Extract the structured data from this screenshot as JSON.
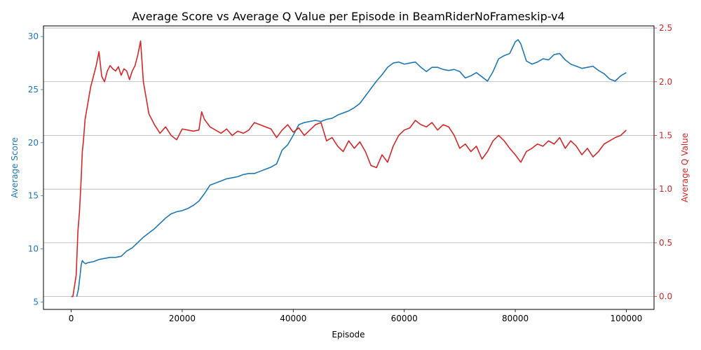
{
  "chart_data": {
    "type": "line",
    "title": "Average Score vs Average Q Value per Episode in BeamRiderNoFrameskip-v4",
    "xlabel": "Episode",
    "xlim": [
      -5000,
      105000
    ],
    "xticks": [
      0,
      20000,
      40000,
      60000,
      80000,
      100000
    ],
    "grid": "horizontal (right axis)",
    "y_left": {
      "label": "Average Score",
      "color": "#1f77b4",
      "lim": [
        4.3,
        31.0
      ],
      "ticks": [
        5,
        10,
        15,
        20,
        25,
        30
      ]
    },
    "y_right": {
      "label": "Average Q Value",
      "color": "#d62728",
      "lim": [
        -0.12,
        2.52
      ],
      "ticks": [
        "0.0",
        "0.5",
        "1.0",
        "1.5",
        "2.0",
        "2.5"
      ]
    },
    "series": [
      {
        "axis": "left",
        "color": "#1f77b4",
        "x": [
          1000,
          1300,
          1600,
          1800,
          2000,
          2300,
          2600,
          3000,
          4000,
          5000,
          6000,
          7000,
          8000,
          9000,
          10000,
          11000,
          12000,
          13000,
          14000,
          15000,
          16000,
          17000,
          18000,
          19000,
          20000,
          21000,
          22000,
          23000,
          24000,
          25000,
          26000,
          27000,
          28000,
          29000,
          30000,
          31000,
          32000,
          33000,
          34000,
          35000,
          36000,
          37000,
          38000,
          39000,
          40000,
          41000,
          42000,
          43000,
          44000,
          45000,
          46000,
          47000,
          48000,
          49000,
          50000,
          51000,
          52000,
          53000,
          54000,
          55000,
          56000,
          57000,
          58000,
          59000,
          60000,
          61000,
          62000,
          63000,
          64000,
          65000,
          66000,
          67000,
          68000,
          69000,
          70000,
          71000,
          72000,
          73000,
          74000,
          75000,
          76000,
          77000,
          78000,
          79000,
          80000,
          80500,
          81000,
          82000,
          83000,
          84000,
          85000,
          86000,
          87000,
          88000,
          89000,
          90000,
          91000,
          92000,
          93000,
          94000,
          95000,
          96000,
          97000,
          98000,
          99000,
          100000
        ],
        "y": [
          5.5,
          6.2,
          7.5,
          8.5,
          8.9,
          8.7,
          8.6,
          8.7,
          8.8,
          9.0,
          9.1,
          9.2,
          9.2,
          9.3,
          9.8,
          10.1,
          10.6,
          11.1,
          11.5,
          11.9,
          12.4,
          12.9,
          13.3,
          13.5,
          13.6,
          13.8,
          14.1,
          14.5,
          15.2,
          16.0,
          16.2,
          16.4,
          16.6,
          16.7,
          16.8,
          17.0,
          17.1,
          17.1,
          17.3,
          17.5,
          17.7,
          18.0,
          19.3,
          19.8,
          20.7,
          21.7,
          21.9,
          22.0,
          22.1,
          22.0,
          22.2,
          22.3,
          22.6,
          22.8,
          23.0,
          23.3,
          23.7,
          24.4,
          25.1,
          25.8,
          26.4,
          27.1,
          27.5,
          27.6,
          27.4,
          27.5,
          27.6,
          27.1,
          26.7,
          27.1,
          27.1,
          26.9,
          26.8,
          26.9,
          26.7,
          26.1,
          26.3,
          26.6,
          26.2,
          25.8,
          26.7,
          27.9,
          28.2,
          28.4,
          29.5,
          29.7,
          29.3,
          27.7,
          27.4,
          27.6,
          27.9,
          27.8,
          28.3,
          28.4,
          27.8,
          27.4,
          27.2,
          27.0,
          27.1,
          27.2,
          26.8,
          26.5,
          26.0,
          25.8,
          26.3,
          26.6
        ]
      },
      {
        "axis": "right",
        "color": "#d62728",
        "x": [
          0,
          300,
          600,
          900,
          1200,
          1500,
          1800,
          2000,
          2200,
          2500,
          3000,
          3500,
          4000,
          4500,
          5000,
          5500,
          6000,
          6500,
          7000,
          7500,
          8000,
          8500,
          9000,
          9500,
          10000,
          10500,
          11000,
          11500,
          12000,
          12500,
          13000,
          13500,
          14000,
          15000,
          16000,
          17000,
          18000,
          19000,
          20000,
          21000,
          22000,
          23000,
          23500,
          24000,
          25000,
          26000,
          27000,
          28000,
          29000,
          30000,
          31000,
          32000,
          33000,
          34000,
          35000,
          36000,
          37000,
          38000,
          39000,
          40000,
          41000,
          42000,
          43000,
          44000,
          45000,
          46000,
          47000,
          48000,
          49000,
          50000,
          51000,
          52000,
          53000,
          54000,
          55000,
          56000,
          57000,
          58000,
          59000,
          60000,
          61000,
          62000,
          63000,
          64000,
          65000,
          66000,
          67000,
          68000,
          69000,
          70000,
          71000,
          72000,
          73000,
          74000,
          75000,
          76000,
          77000,
          78000,
          79000,
          80000,
          81000,
          82000,
          83000,
          84000,
          85000,
          86000,
          87000,
          88000,
          89000,
          90000,
          91000,
          92000,
          93000,
          94000,
          95000,
          96000,
          97000,
          98000,
          99000,
          100000
        ],
        "y": [
          0.0,
          0.0,
          0.1,
          0.2,
          0.6,
          0.8,
          1.1,
          1.35,
          1.45,
          1.65,
          1.8,
          1.95,
          2.05,
          2.15,
          2.28,
          2.05,
          2.0,
          2.1,
          2.15,
          2.12,
          2.1,
          2.14,
          2.06,
          2.12,
          2.1,
          2.02,
          2.1,
          2.15,
          2.25,
          2.38,
          2.0,
          1.85,
          1.7,
          1.6,
          1.52,
          1.58,
          1.5,
          1.46,
          1.56,
          1.55,
          1.54,
          1.55,
          1.72,
          1.65,
          1.58,
          1.55,
          1.52,
          1.56,
          1.5,
          1.54,
          1.52,
          1.55,
          1.62,
          1.6,
          1.58,
          1.56,
          1.48,
          1.55,
          1.6,
          1.53,
          1.57,
          1.5,
          1.55,
          1.6,
          1.62,
          1.45,
          1.48,
          1.4,
          1.35,
          1.45,
          1.38,
          1.44,
          1.35,
          1.22,
          1.2,
          1.32,
          1.25,
          1.4,
          1.5,
          1.55,
          1.57,
          1.64,
          1.6,
          1.58,
          1.62,
          1.55,
          1.6,
          1.58,
          1.5,
          1.38,
          1.42,
          1.35,
          1.4,
          1.28,
          1.35,
          1.45,
          1.5,
          1.45,
          1.38,
          1.32,
          1.25,
          1.35,
          1.38,
          1.42,
          1.4,
          1.45,
          1.42,
          1.48,
          1.38,
          1.45,
          1.4,
          1.32,
          1.38,
          1.3,
          1.35,
          1.42,
          1.45,
          1.48,
          1.5,
          1.55
        ]
      }
    ]
  }
}
